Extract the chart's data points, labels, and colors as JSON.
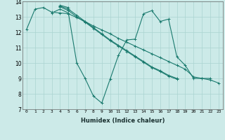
{
  "bg_color": "#cceae8",
  "grid_color": "#aad4d0",
  "line_color": "#1a7a6e",
  "xlabel": "Humidex (Indice chaleur)",
  "xlim": [
    -0.5,
    23.5
  ],
  "ylim": [
    7,
    14
  ],
  "yticks": [
    7,
    8,
    9,
    10,
    11,
    12,
    13,
    14
  ],
  "series": [
    [
      0,
      12.2,
      1,
      13.5,
      2,
      13.6,
      3,
      13.3,
      4,
      13.25,
      5,
      13.2,
      6,
      12.95,
      7,
      12.7,
      8,
      12.4,
      9,
      12.15,
      10,
      11.9,
      11,
      11.6,
      12,
      11.35,
      13,
      11.1,
      14,
      10.85,
      15,
      10.6,
      16,
      10.35,
      17,
      10.1,
      18,
      9.85,
      19,
      9.6,
      20,
      9.1,
      21,
      9.0,
      22,
      8.9,
      23,
      8.7
    ],
    [
      4,
      13.75,
      5,
      13.6
    ],
    [
      3,
      13.25,
      4,
      13.5,
      5,
      13.25,
      6,
      10.0,
      7,
      9.0,
      8,
      7.85,
      9,
      7.4,
      10,
      8.95,
      11,
      10.5,
      12,
      11.5,
      13,
      11.55,
      14,
      13.2,
      15,
      13.4,
      16,
      12.7,
      17,
      12.85,
      18,
      10.4,
      19,
      9.85,
      20,
      9.0,
      21,
      9.0,
      22,
      9.0
    ],
    [
      4,
      13.7,
      5,
      13.5,
      6,
      13.1,
      7,
      12.7,
      8,
      12.3,
      9,
      11.9,
      10,
      11.5,
      11,
      11.15,
      12,
      10.8,
      13,
      10.45,
      14,
      10.1,
      15,
      9.75,
      16,
      9.5,
      17,
      9.2,
      18,
      9.0
    ],
    [
      4,
      13.65,
      5,
      13.4,
      6,
      13.0,
      7,
      12.65,
      8,
      12.25,
      9,
      11.85,
      10,
      11.45,
      11,
      11.1,
      12,
      10.75,
      13,
      10.4,
      14,
      10.05,
      15,
      9.7,
      16,
      9.45,
      17,
      9.15,
      18,
      8.95
    ]
  ]
}
